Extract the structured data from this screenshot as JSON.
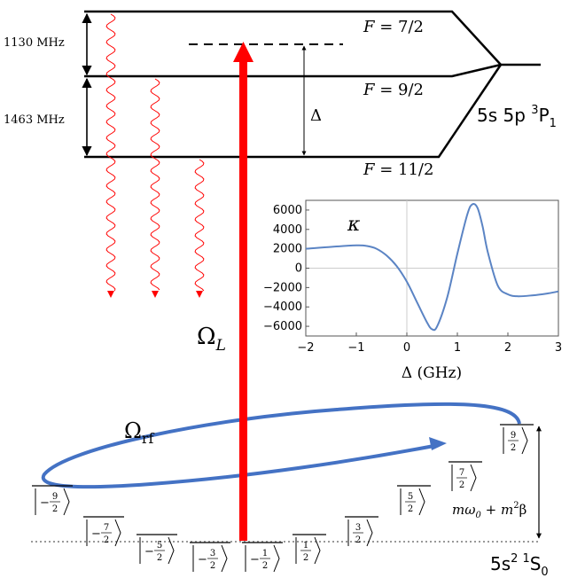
{
  "hyperfine": {
    "splitting_upper": "1130 MHz",
    "splitting_lower": "1463 MHz",
    "delta_label": "Δ",
    "levels": [
      {
        "name": "F",
        "value": "7/2"
      },
      {
        "name": "F",
        "value": "9/2"
      },
      {
        "name": "F",
        "value": "11/2"
      }
    ],
    "excited_state": {
      "prefix": "5s 5p ",
      "sup": "3",
      "main": "P",
      "sub": "1"
    },
    "ground_state": {
      "prefix": "5s",
      "sup1": "2",
      "sup2": "1",
      "main": "S",
      "sub": "0"
    }
  },
  "laser": {
    "symbol": "Ω",
    "sub": "L",
    "color": "#ff0000"
  },
  "rf": {
    "symbol": "Ω",
    "sub": "rf",
    "color": "#4472c4"
  },
  "energy_formula": {
    "m1": "m",
    "omega": "ω",
    "sub0": "0",
    "plus": " + ",
    "m2": "m",
    "sup2": "2",
    "beta": "β"
  },
  "zeeman_states": [
    {
      "sign": "−",
      "num": "9",
      "den": "2"
    },
    {
      "sign": "−",
      "num": "7",
      "den": "2"
    },
    {
      "sign": "−",
      "num": "5",
      "den": "2"
    },
    {
      "sign": "−",
      "num": "3",
      "den": "2"
    },
    {
      "sign": "−",
      "num": "1",
      "den": "2"
    },
    {
      "sign": "",
      "num": "1",
      "den": "2"
    },
    {
      "sign": "",
      "num": "3",
      "den": "2"
    },
    {
      "sign": "",
      "num": "5",
      "den": "2"
    },
    {
      "sign": "",
      "num": "7",
      "den": "2"
    },
    {
      "sign": "",
      "num": "9",
      "den": "2"
    }
  ],
  "chart_data": {
    "type": "line",
    "title": "κ",
    "xlabel": "Δ (GHz)",
    "ylabel": "",
    "xlim": [
      -2,
      3
    ],
    "ylim": [
      -7000,
      7000
    ],
    "xticks": [
      -2,
      -1,
      0,
      1,
      2,
      3
    ],
    "yticks": [
      -6000,
      -4000,
      -2000,
      0,
      2000,
      4000,
      6000
    ],
    "series": [
      {
        "color": "#5b84c4",
        "x": [
          -2.0,
          -1.5,
          -1.0,
          -0.8,
          -0.6,
          -0.4,
          -0.2,
          0.0,
          0.2,
          0.4,
          0.5,
          0.6,
          0.8,
          1.0,
          1.2,
          1.3,
          1.4,
          1.5,
          1.6,
          1.8,
          2.0,
          2.2,
          2.5,
          2.8,
          3.0
        ],
        "y": [
          2000,
          2200,
          2350,
          2300,
          2000,
          1300,
          200,
          -1400,
          -3500,
          -5600,
          -6300,
          -6000,
          -3000,
          1500,
          5600,
          6600,
          6200,
          4300,
          1700,
          -1800,
          -2700,
          -2900,
          -2800,
          -2600,
          -2400
        ]
      }
    ]
  }
}
